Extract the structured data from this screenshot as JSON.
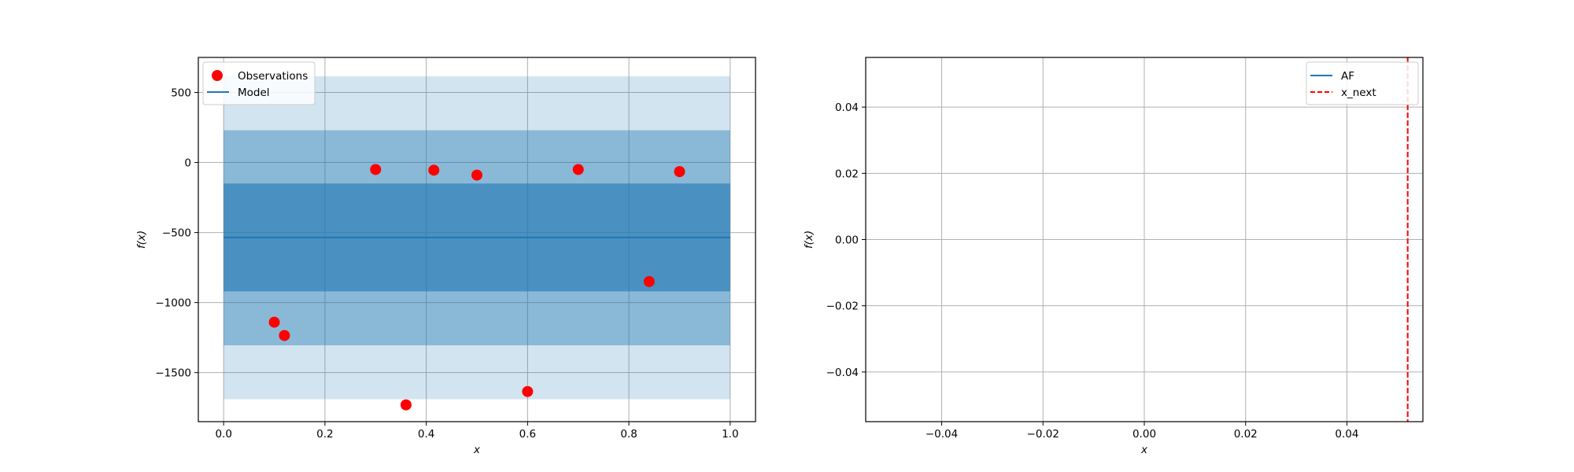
{
  "chart_data": [
    {
      "type": "scatter",
      "title": "",
      "xlabel": "x",
      "ylabel": "f(x)",
      "xlim": [
        -0.05,
        1.05
      ],
      "ylim": [
        -1850,
        750
      ],
      "xticks": [
        0.0,
        0.2,
        0.4,
        0.6,
        0.8,
        1.0
      ],
      "xtick_labels": [
        "0.0",
        "0.2",
        "0.4",
        "0.6",
        "0.8",
        "1.0"
      ],
      "yticks": [
        500,
        0,
        -500,
        -1000,
        -1500
      ],
      "ytick_labels": [
        "500",
        "0",
        "−500",
        "−1000",
        "−1500"
      ],
      "grid": true,
      "legend": {
        "placement": "top-left",
        "entries": [
          "Observations",
          "Model"
        ]
      },
      "series": [
        {
          "name": "Observations",
          "kind": "scatter",
          "color": "#ff0000",
          "x": [
            0.1,
            0.12,
            0.3,
            0.36,
            0.415,
            0.5,
            0.6,
            0.7,
            0.84,
            0.9
          ],
          "y": [
            -1140,
            -1235,
            -50,
            -1730,
            -55,
            -90,
            -1635,
            -50,
            -850,
            -65
          ]
        },
        {
          "name": "Model",
          "kind": "line",
          "color": "#1f77b4",
          "x": [
            0.0,
            1.0
          ],
          "y": [
            -535,
            -535
          ]
        }
      ],
      "bands": [
        {
          "x": [
            0.0,
            1.0
          ],
          "lower": -1690,
          "upper": 615,
          "color": "#1f77b4",
          "opacity": 0.2
        },
        {
          "x": [
            0.0,
            1.0
          ],
          "lower": -1305,
          "upper": 230,
          "color": "#1f77b4",
          "opacity": 0.4
        },
        {
          "x": [
            0.0,
            1.0
          ],
          "lower": -920,
          "upper": -150,
          "color": "#1f77b4",
          "opacity": 0.6
        }
      ]
    },
    {
      "type": "line",
      "title": "",
      "xlabel": "x",
      "ylabel": "f(x)",
      "xlim": [
        -0.055,
        0.055
      ],
      "ylim": [
        -0.055,
        0.055
      ],
      "xticks": [
        -0.04,
        -0.02,
        0.0,
        0.02,
        0.04
      ],
      "xtick_labels": [
        "−0.04",
        "−0.02",
        "0.00",
        "0.02",
        "0.04"
      ],
      "yticks": [
        0.04,
        0.02,
        0.0,
        -0.02,
        -0.04
      ],
      "ytick_labels": [
        "0.04",
        "0.02",
        "0.00",
        "−0.02",
        "−0.04"
      ],
      "grid": true,
      "legend": {
        "placement": "top-right",
        "entries": [
          "AF",
          "x_next"
        ]
      },
      "series": [
        {
          "name": "AF",
          "kind": "line",
          "color": "#1f77b4",
          "x": [],
          "y": []
        },
        {
          "name": "x_next",
          "kind": "vline",
          "color": "#ff0000",
          "style": "dashed",
          "x": [
            0.052
          ]
        }
      ]
    }
  ]
}
